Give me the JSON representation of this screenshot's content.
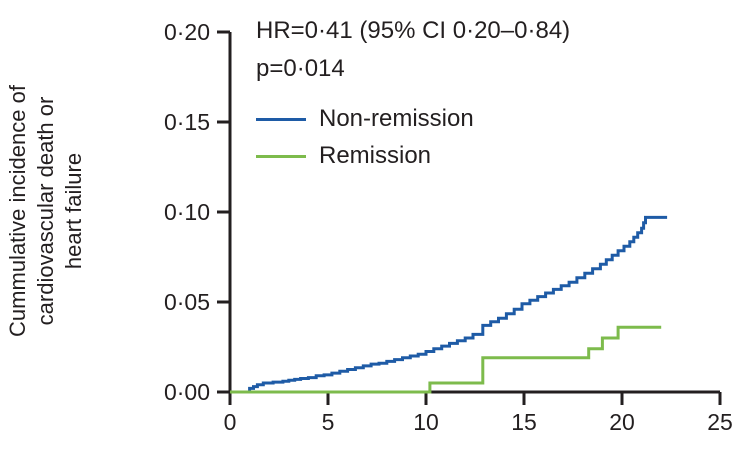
{
  "chart_data": {
    "type": "line",
    "subtype": "step-cumulative-incidence",
    "title": "",
    "xlabel": "",
    "ylabel": "Cummulative incidence of cardiovascular death or heart failure",
    "ylabel_lines": [
      "Cummulative incidence of",
      "cardiovascular death or",
      "heart failure"
    ],
    "annotation": [
      "HR=0·41 (95% CI 0·20–0·84)",
      "p=0·014"
    ],
    "xlim": [
      0,
      25
    ],
    "ylim": [
      0,
      0.2
    ],
    "grid": false,
    "legend_position": "upper-left-inside",
    "xticks": {
      "values": [
        0,
        5,
        10,
        15,
        20,
        25
      ],
      "labels": [
        "0",
        "5",
        "10",
        "15",
        "20",
        "25"
      ]
    },
    "yticks": {
      "values": [
        0.0,
        0.05,
        0.1,
        0.15,
        0.2
      ],
      "labels": [
        "0·00",
        "0·05",
        "0·10",
        "0·15",
        "0·20"
      ]
    },
    "colors": {
      "axis": "#231f20",
      "text": "#231f20",
      "non_remission": "#1e5ba6",
      "remission": "#7dbb4c"
    },
    "series": [
      {
        "name": "Non-remission",
        "color": "#1e5ba6",
        "points": [
          [
            0,
            0
          ],
          [
            0.9,
            0
          ],
          [
            1.0,
            0.002
          ],
          [
            1.2,
            0.003
          ],
          [
            1.4,
            0.004
          ],
          [
            1.7,
            0.005
          ],
          [
            2.2,
            0.0055
          ],
          [
            2.7,
            0.006
          ],
          [
            3.0,
            0.0065
          ],
          [
            3.3,
            0.007
          ],
          [
            3.6,
            0.0075
          ],
          [
            4.0,
            0.008
          ],
          [
            4.4,
            0.009
          ],
          [
            4.8,
            0.0095
          ],
          [
            5.2,
            0.0105
          ],
          [
            5.6,
            0.0115
          ],
          [
            6.0,
            0.0125
          ],
          [
            6.4,
            0.0135
          ],
          [
            6.8,
            0.0145
          ],
          [
            7.2,
            0.0155
          ],
          [
            7.6,
            0.016
          ],
          [
            8.0,
            0.017
          ],
          [
            8.4,
            0.018
          ],
          [
            8.8,
            0.019
          ],
          [
            9.2,
            0.02
          ],
          [
            9.6,
            0.021
          ],
          [
            10.0,
            0.0225
          ],
          [
            10.4,
            0.024
          ],
          [
            10.8,
            0.0255
          ],
          [
            11.2,
            0.027
          ],
          [
            11.6,
            0.0285
          ],
          [
            12.0,
            0.03
          ],
          [
            12.4,
            0.032
          ],
          [
            12.9,
            0.037
          ],
          [
            13.3,
            0.039
          ],
          [
            13.7,
            0.041
          ],
          [
            14.1,
            0.0435
          ],
          [
            14.5,
            0.046
          ],
          [
            14.9,
            0.049
          ],
          [
            15.3,
            0.051
          ],
          [
            15.7,
            0.053
          ],
          [
            16.1,
            0.055
          ],
          [
            16.5,
            0.057
          ],
          [
            16.9,
            0.059
          ],
          [
            17.3,
            0.061
          ],
          [
            17.7,
            0.0635
          ],
          [
            18.1,
            0.066
          ],
          [
            18.5,
            0.0685
          ],
          [
            18.9,
            0.071
          ],
          [
            19.2,
            0.0735
          ],
          [
            19.5,
            0.076
          ],
          [
            19.8,
            0.0785
          ],
          [
            20.1,
            0.081
          ],
          [
            20.4,
            0.0835
          ],
          [
            20.6,
            0.086
          ],
          [
            20.8,
            0.0885
          ],
          [
            21.0,
            0.091
          ],
          [
            21.1,
            0.094
          ],
          [
            21.2,
            0.097
          ],
          [
            22.3,
            0.097
          ]
        ]
      },
      {
        "name": "Remission",
        "color": "#7dbb4c",
        "points": [
          [
            0,
            0
          ],
          [
            10.2,
            0.005
          ],
          [
            12.9,
            0.019
          ],
          [
            18.3,
            0.024
          ],
          [
            19.0,
            0.03
          ],
          [
            19.8,
            0.036
          ],
          [
            22.0,
            0.036
          ]
        ]
      }
    ]
  }
}
